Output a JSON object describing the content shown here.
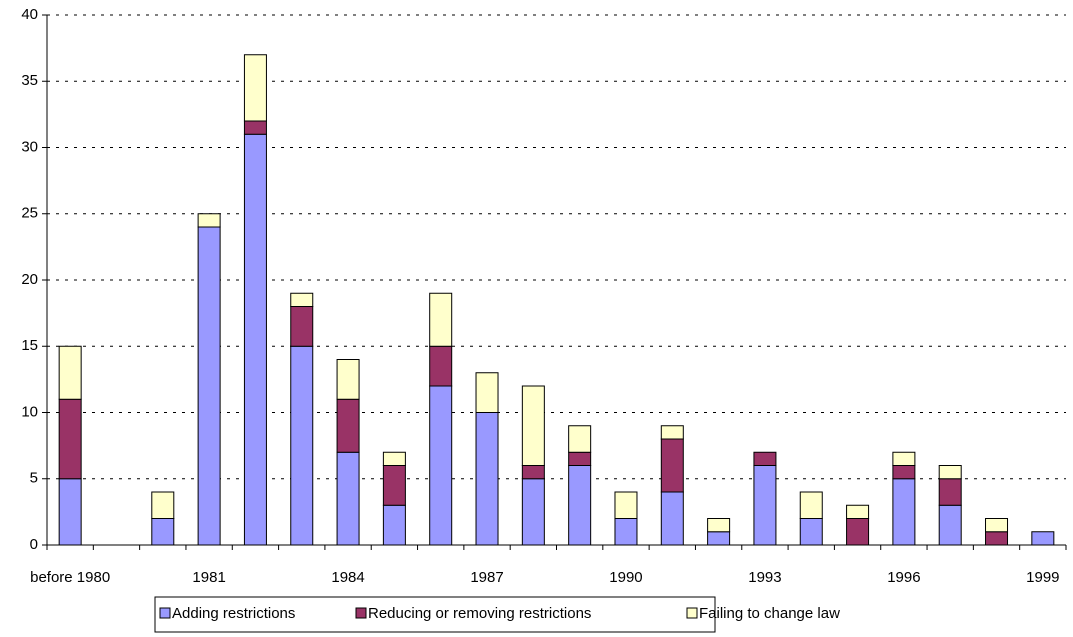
{
  "chart_data": {
    "type": "stacked_bar",
    "categories": [
      "before 1980",
      null,
      null,
      "1981",
      null,
      null,
      "1984",
      null,
      null,
      "1987",
      null,
      null,
      "1990",
      null,
      null,
      "1993",
      null,
      null,
      "1996",
      null,
      null,
      "1999"
    ],
    "series": [
      {
        "name": "Adding restrictions",
        "color": "#9999ff",
        "values": [
          5,
          0,
          2,
          24,
          31,
          15,
          7,
          3,
          12,
          10,
          5,
          6,
          2,
          4,
          1,
          6,
          2,
          0,
          5,
          3,
          0,
          1
        ]
      },
      {
        "name": "Reducing or removing restrictions",
        "color": "#993366",
        "values": [
          6,
          0,
          0,
          0,
          1,
          3,
          4,
          3,
          3,
          0,
          1,
          1,
          0,
          4,
          0,
          1,
          0,
          2,
          1,
          2,
          1,
          0
        ]
      },
      {
        "name": "Failing to change law",
        "color": "#ffffcc",
        "values": [
          4,
          0,
          2,
          1,
          5,
          1,
          3,
          1,
          4,
          3,
          6,
          2,
          2,
          1,
          1,
          0,
          2,
          1,
          1,
          1,
          1,
          0
        ]
      }
    ],
    "ylim": [
      0,
      40
    ],
    "yticks": [
      0,
      5,
      10,
      15,
      20,
      25,
      30,
      35,
      40
    ],
    "grid": true,
    "legend": "bottom"
  }
}
